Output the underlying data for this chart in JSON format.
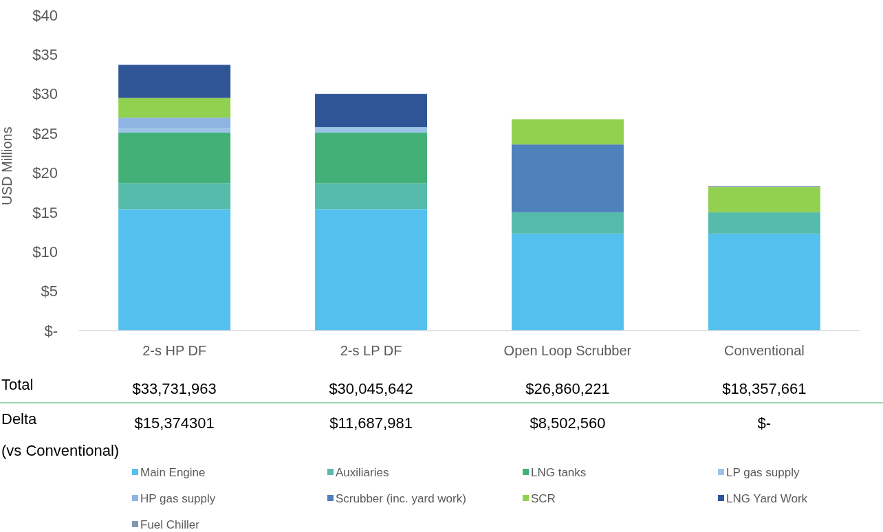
{
  "chart_data": {
    "type": "bar",
    "stacked": true,
    "ylabel": "USD Millions",
    "categories": [
      "2-s HP DF",
      "2-s LP DF",
      "Open Loop Scrubber",
      "Conventional"
    ],
    "series": [
      {
        "name": "Main Engine",
        "color": "#53c0ee",
        "values": [
          15.4,
          15.4,
          12.3,
          12.3
        ]
      },
      {
        "name": "Auxiliaries",
        "color": "#57bbab",
        "values": [
          3.3,
          3.3,
          2.7,
          2.7
        ]
      },
      {
        "name": "LNG tanks",
        "color": "#43b177",
        "values": [
          6.4,
          6.4,
          null,
          null
        ]
      },
      {
        "name": "LP gas supply",
        "color": "#9dc3e6",
        "values": [
          0.6,
          0.7,
          null,
          null
        ]
      },
      {
        "name": "HP gas supply",
        "color": "#8fb4e3",
        "values": [
          1.3,
          null,
          null,
          null
        ]
      },
      {
        "name": "Scrubber (inc. yard work)",
        "color": "#4f81bd",
        "values": [
          null,
          null,
          8.6,
          null
        ]
      },
      {
        "name": "SCR",
        "color": "#92d050",
        "values": [
          2.5,
          null,
          3.2,
          3.2
        ]
      },
      {
        "name": "LNG Yard Work",
        "color": "#2f5597",
        "values": [
          4.2,
          4.2,
          null,
          null
        ]
      },
      {
        "name": "Fuel Chiller",
        "color": "#8497b0",
        "values": [
          null,
          null,
          null,
          0.1
        ]
      }
    ],
    "ylim": [
      0,
      40
    ],
    "yticks": [
      {
        "value": 0,
        "label": "$-"
      },
      {
        "value": 5,
        "label": "$5"
      },
      {
        "value": 10,
        "label": "$10"
      },
      {
        "value": 15,
        "label": "$15"
      },
      {
        "value": 20,
        "label": "$20"
      },
      {
        "value": 25,
        "label": "$25"
      },
      {
        "value": 30,
        "label": "$30"
      },
      {
        "value": 35,
        "label": "$35"
      },
      {
        "value": 40,
        "label": "$40"
      }
    ],
    "annotations": [
      "Total",
      "$33,731,963",
      "$30,045,642",
      "$26,860,221",
      "$18,357,661",
      "Delta\n(vs Conventional)",
      "$15,374301",
      "$11,687,981",
      "$8,502,560",
      "$-"
    ],
    "grid": false,
    "legend": "bottom"
  }
}
